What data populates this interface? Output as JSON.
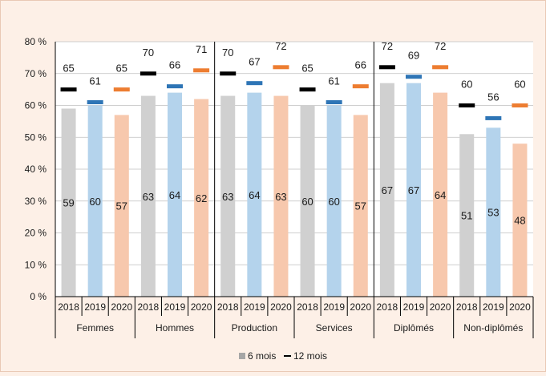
{
  "chart_data": {
    "type": "bar",
    "groups": [
      "Femmes",
      "Hommes",
      "Production",
      "Services",
      "Diplômés",
      "Non-diplômés"
    ],
    "years": [
      "2018",
      "2019",
      "2020"
    ],
    "y_ticks": [
      "0 %",
      "10 %",
      "20 %",
      "30 %",
      "40 %",
      "50 %",
      "60 %",
      "70 %",
      "80 %"
    ],
    "ylim": [
      0,
      80
    ],
    "series": [
      {
        "name": "6 mois",
        "marker": "bar",
        "values": [
          [
            59,
            60,
            57
          ],
          [
            63,
            64,
            62
          ],
          [
            63,
            64,
            63
          ],
          [
            60,
            60,
            57
          ],
          [
            67,
            67,
            64
          ],
          [
            51,
            53,
            48
          ]
        ]
      },
      {
        "name": "12 mois",
        "marker": "dash",
        "values": [
          [
            65,
            61,
            65
          ],
          [
            70,
            66,
            71
          ],
          [
            70,
            67,
            72
          ],
          [
            65,
            61,
            66
          ],
          [
            72,
            69,
            72
          ],
          [
            60,
            56,
            60
          ]
        ]
      }
    ],
    "colors": {
      "bar_by_year": [
        "#d0d0d0",
        "#b4d3ec",
        "#f7c8ad"
      ],
      "dash_by_year": [
        "#000000",
        "#2e75b6",
        "#ed7d31"
      ],
      "axis": "#000000",
      "grid": "#bfbfbf",
      "background": "#fdf0e7",
      "plot_background": "#ffffff"
    },
    "gridlines": true,
    "legend_position": "bottom",
    "legend": [
      {
        "label": "6 mois",
        "swatch": "square",
        "color": "#a6a6a6"
      },
      {
        "label": "12 mois",
        "swatch": "line",
        "color": "#000000"
      }
    ]
  }
}
